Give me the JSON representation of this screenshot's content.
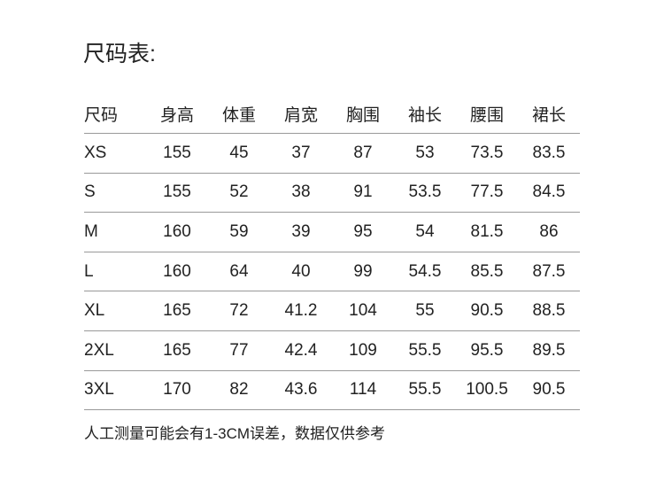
{
  "title": "尺码表:",
  "table": {
    "headers": [
      "尺码",
      "身高",
      "体重",
      "肩宽",
      "胸围",
      "袖长",
      "腰围",
      "裙长"
    ],
    "rows": [
      [
        "XS",
        "155",
        "45",
        "37",
        "87",
        "53",
        "73.5",
        "83.5"
      ],
      [
        "S",
        "155",
        "52",
        "38",
        "91",
        "53.5",
        "77.5",
        "84.5"
      ],
      [
        "M",
        "160",
        "59",
        "39",
        "95",
        "54",
        "81.5",
        "86"
      ],
      [
        "L",
        "160",
        "64",
        "40",
        "99",
        "54.5",
        "85.5",
        "87.5"
      ],
      [
        "XL",
        "165",
        "72",
        "41.2",
        "104",
        "55",
        "90.5",
        "88.5"
      ],
      [
        "2XL",
        "165",
        "77",
        "42.4",
        "109",
        "55.5",
        "95.5",
        "89.5"
      ],
      [
        "3XL",
        "170",
        "82",
        "43.6",
        "114",
        "55.5",
        "100.5",
        "90.5"
      ]
    ]
  },
  "note": "人工测量可能会有1-3CM误差，数据仅供参考"
}
